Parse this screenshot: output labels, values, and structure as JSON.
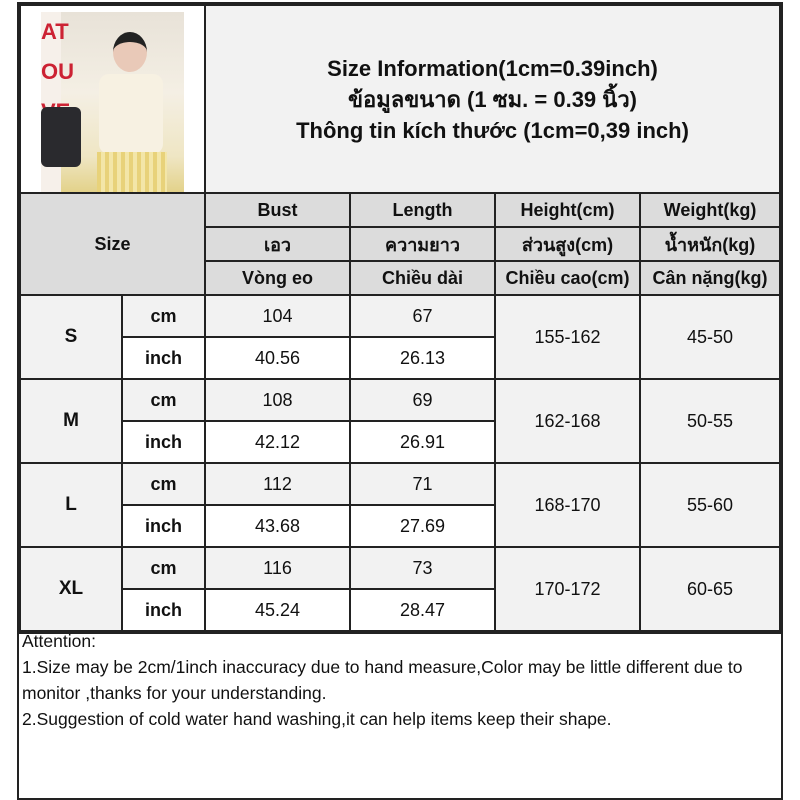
{
  "header": {
    "title_lines": [
      "Size Information(1cm=0.39inch)",
      "ข้อมูลขนาด (1 ซม. = 0.39 นิ้ว)",
      "Thông tin kích thước (1cm=0,39 inch)"
    ]
  },
  "columns": {
    "size_label": "Size",
    "en": [
      "Bust",
      "Length",
      "Height(cm)",
      "Weight(kg)"
    ],
    "th": [
      "เอว",
      "ความยาว",
      "ส่วนสูง(cm)",
      "น้ำหนัก(kg)"
    ],
    "vi": [
      "Vòng eo",
      "Chiều dài",
      "Chiều cao(cm)",
      "Cân nặng(kg)"
    ]
  },
  "rows": [
    {
      "size": "S",
      "cm_label": "cm",
      "inch_label": "inch",
      "bust_cm": "104",
      "length_cm": "67",
      "bust_inch": "40.56",
      "length_inch": "26.13",
      "height": "155-162",
      "weight": "45-50"
    },
    {
      "size": "M",
      "cm_label": "cm",
      "inch_label": "inch",
      "bust_cm": "108",
      "length_cm": "69",
      "bust_inch": "42.12",
      "length_inch": "26.91",
      "height": "162-168",
      "weight": "50-55"
    },
    {
      "size": "L",
      "cm_label": "cm",
      "inch_label": "inch",
      "bust_cm": "112",
      "length_cm": "71",
      "bust_inch": "43.68",
      "length_inch": "27.69",
      "height": "168-170",
      "weight": "55-60"
    },
    {
      "size": "XL",
      "cm_label": "cm",
      "inch_label": "inch",
      "bust_cm": "116",
      "length_cm": "73",
      "bust_inch": "45.24",
      "length_inch": "28.47",
      "height": "170-172",
      "weight": "60-65"
    }
  ],
  "attention": {
    "heading": "Attention:",
    "lines": [
      "1.Size may be 2cm/1inch inaccuracy due to hand measure,Color may be little different due to monitor ,thanks for your understanding.",
      "2.Suggestion of cold water hand washing,it can help items keep their shape."
    ]
  },
  "photo": {
    "wall_text": "AT OU VE"
  }
}
